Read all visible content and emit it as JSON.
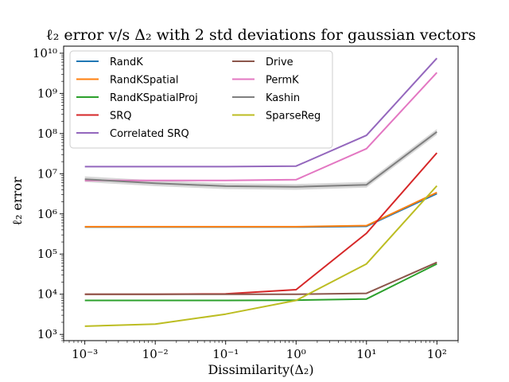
{
  "chart_data": {
    "type": "line",
    "title": "ℓ₂ error v/s Δ₂ with 2 std deviations for gaussian vectors",
    "xlabel": "Dissimilarity(Δ₂)",
    "ylabel": "ℓ₂ error",
    "xscale": "log",
    "yscale": "log",
    "xlim": [
      0.0005,
      200
    ],
    "ylim": [
      700,
      15000000000
    ],
    "x": [
      0.001,
      0.01,
      0.1,
      1,
      10,
      100
    ],
    "x_tick_labels": [
      "10⁻³",
      "10⁻²",
      "10⁻¹",
      "10⁰",
      "10¹",
      "10²"
    ],
    "y_tick_labels": [
      "10³",
      "10⁴",
      "10⁵",
      "10⁶",
      "10⁷",
      "10⁸",
      "10⁹",
      "10¹⁰"
    ],
    "legend_position": "upper-left",
    "series": [
      {
        "name": "RandK",
        "color": "#1f77b4",
        "values": [
          470000,
          470000,
          470000,
          470000,
          490000,
          3200000
        ]
      },
      {
        "name": "RandKSpatial",
        "color": "#ff7f0e",
        "values": [
          480000,
          480000,
          480000,
          480000,
          510000,
          3400000
        ]
      },
      {
        "name": "RandKSpatialProj",
        "color": "#2ca02c",
        "values": [
          7000,
          7000,
          7000,
          7100,
          7600,
          57000
        ]
      },
      {
        "name": "SRQ",
        "color": "#d62728",
        "values": [
          10000,
          10000,
          10200,
          13000,
          330000,
          33000000
        ]
      },
      {
        "name": "Correlated SRQ",
        "color": "#9467bd",
        "values": [
          15000000,
          15000000,
          15000000,
          15500000,
          90000000,
          7500000000
        ]
      },
      {
        "name": "Drive",
        "color": "#8c564b",
        "values": [
          10000,
          10000,
          10000,
          10000,
          10500,
          62000
        ]
      },
      {
        "name": "PermK",
        "color": "#e377c2",
        "values": [
          6800000,
          6800000,
          6800000,
          7100000,
          42000000,
          3300000000
        ]
      },
      {
        "name": "Kashin",
        "color": "#7f7f7f",
        "values": [
          7300000,
          5800000,
          4900000,
          4700000,
          5300000,
          110000000
        ]
      },
      {
        "name": "SparseReg",
        "color": "#bcbd22",
        "values": [
          1600,
          1800,
          3200,
          7000,
          57000,
          5000000
        ]
      }
    ]
  }
}
